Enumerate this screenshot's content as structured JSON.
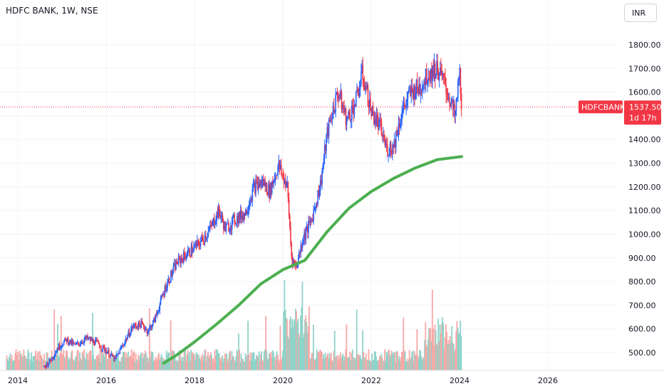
{
  "header": {
    "title": "HDFC BANK, 1W, NSE",
    "currency": "INR"
  },
  "price_label": {
    "symbol": "HDFCBANK",
    "price": "1537.50",
    "countdown": "1d 17h"
  },
  "colors": {
    "up": "#2962ff",
    "down": "#f23645",
    "ma": "#4caf50",
    "vol_up": "#8fd3c9",
    "vol_down": "#f7a9a7",
    "last_price": "#f23645"
  },
  "chart_data": {
    "type": "candlestick",
    "symbol": "HDFC BANK",
    "interval": "1W",
    "exchange": "NSE",
    "currency": "INR",
    "last_price": 1537.5,
    "y_tick_labels": [
      "500.00",
      "600.00",
      "700.00",
      "800.00",
      "900.00",
      "1000.00",
      "1100.00",
      "1200.00",
      "1300.00",
      "1400.00",
      "1500.00",
      "1600.00",
      "1700.00",
      "1800.00"
    ],
    "x_tick_labels": [
      "2014",
      "2016",
      "2018",
      "2020",
      "2022",
      "2024",
      "2026"
    ],
    "ylim": [
      455,
      1860
    ],
    "xlim": [
      2013.75,
      2027.25
    ],
    "price_path": [
      [
        2014.6,
        440
      ],
      [
        2014.75,
        470
      ],
      [
        2014.9,
        520
      ],
      [
        2015.1,
        555
      ],
      [
        2015.3,
        530
      ],
      [
        2015.55,
        560
      ],
      [
        2015.8,
        540
      ],
      [
        2016.05,
        500
      ],
      [
        2016.2,
        470
      ],
      [
        2016.4,
        540
      ],
      [
        2016.6,
        610
      ],
      [
        2016.8,
        620
      ],
      [
        2016.95,
        590
      ],
      [
        2017.1,
        640
      ],
      [
        2017.35,
        780
      ],
      [
        2017.6,
        880
      ],
      [
        2017.85,
        920
      ],
      [
        2018.1,
        960
      ],
      [
        2018.35,
        1020
      ],
      [
        2018.55,
        1100
      ],
      [
        2018.7,
        1020
      ],
      [
        2018.9,
        1060
      ],
      [
        2019.15,
        1090
      ],
      [
        2019.35,
        1200
      ],
      [
        2019.55,
        1220
      ],
      [
        2019.7,
        1180
      ],
      [
        2019.9,
        1290
      ],
      [
        2020.1,
        1200
      ],
      [
        2020.2,
        900
      ],
      [
        2020.3,
        860
      ],
      [
        2020.45,
        980
      ],
      [
        2020.65,
        1060
      ],
      [
        2020.85,
        1210
      ],
      [
        2021.0,
        1420
      ],
      [
        2021.1,
        1500
      ],
      [
        2021.25,
        1600
      ],
      [
        2021.45,
        1480
      ],
      [
        2021.65,
        1560
      ],
      [
        2021.8,
        1680
      ],
      [
        2022.0,
        1520
      ],
      [
        2022.2,
        1450
      ],
      [
        2022.35,
        1360
      ],
      [
        2022.5,
        1370
      ],
      [
        2022.7,
        1520
      ],
      [
        2022.9,
        1600
      ],
      [
        2023.1,
        1620
      ],
      [
        2023.3,
        1680
      ],
      [
        2023.5,
        1700
      ],
      [
        2023.65,
        1640
      ],
      [
        2023.8,
        1560
      ],
      [
        2023.9,
        1490
      ],
      [
        2024.0,
        1690
      ],
      [
        2024.05,
        1537.5
      ]
    ],
    "moving_average": [
      [
        2017.3,
        455
      ],
      [
        2017.6,
        490
      ],
      [
        2018.0,
        545
      ],
      [
        2018.5,
        620
      ],
      [
        2019.0,
        700
      ],
      [
        2019.5,
        790
      ],
      [
        2020.0,
        850
      ],
      [
        2020.5,
        890
      ],
      [
        2021.0,
        1010
      ],
      [
        2021.5,
        1110
      ],
      [
        2022.0,
        1180
      ],
      [
        2022.5,
        1235
      ],
      [
        2023.0,
        1280
      ],
      [
        2023.5,
        1315
      ],
      [
        2024.05,
        1328
      ]
    ]
  }
}
